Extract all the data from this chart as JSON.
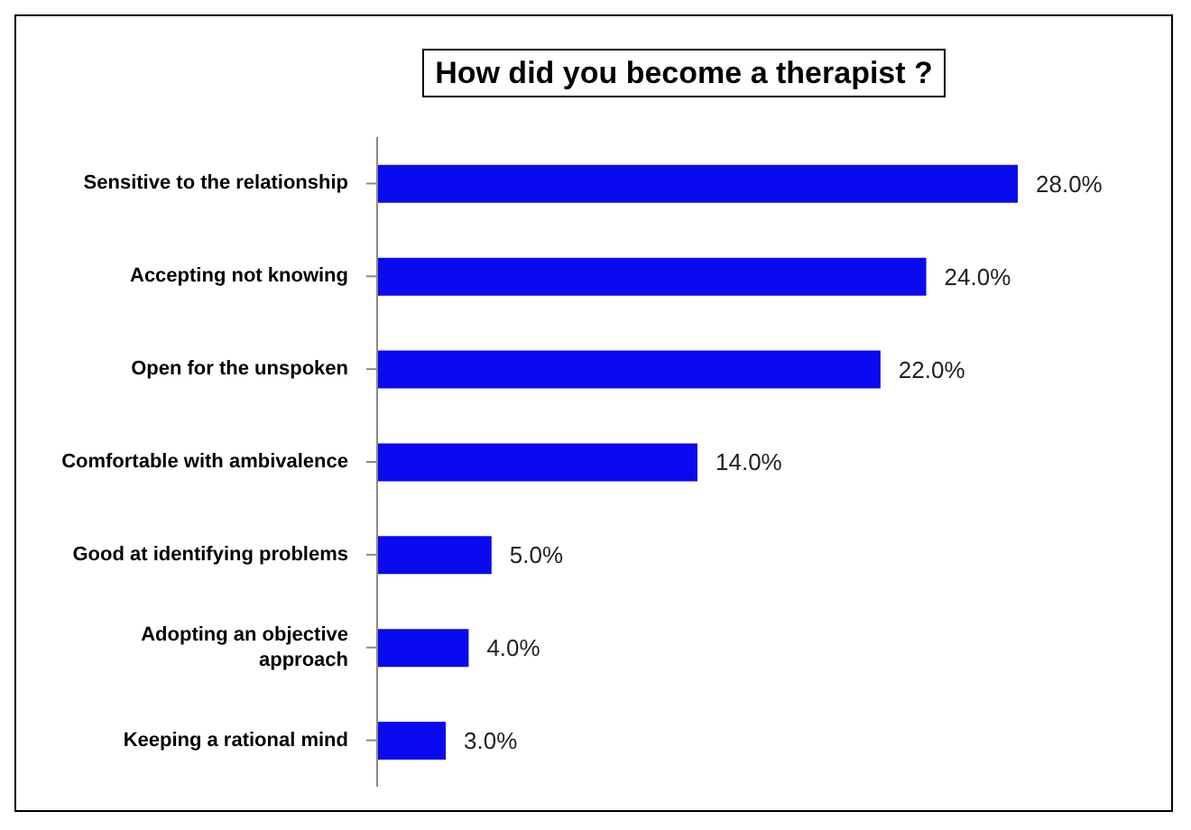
{
  "chart_data": {
    "type": "bar",
    "orientation": "horizontal",
    "title": "How did you become a therapist ?",
    "categories": [
      "Sensitive to the relationship",
      "Accepting not knowing",
      "Open for the unspoken",
      "Comfortable with ambivalence",
      "Good at identifying problems",
      "Adopting an objective approach",
      "Keeping a rational mind"
    ],
    "values": [
      28,
      24,
      22,
      14,
      5,
      4,
      3
    ],
    "value_labels": [
      "28.0%",
      "24.0%",
      "22.0%",
      "14.0%",
      "5.0%",
      "4.0%",
      "3.0%"
    ],
    "color": "#0a0af0"
  }
}
